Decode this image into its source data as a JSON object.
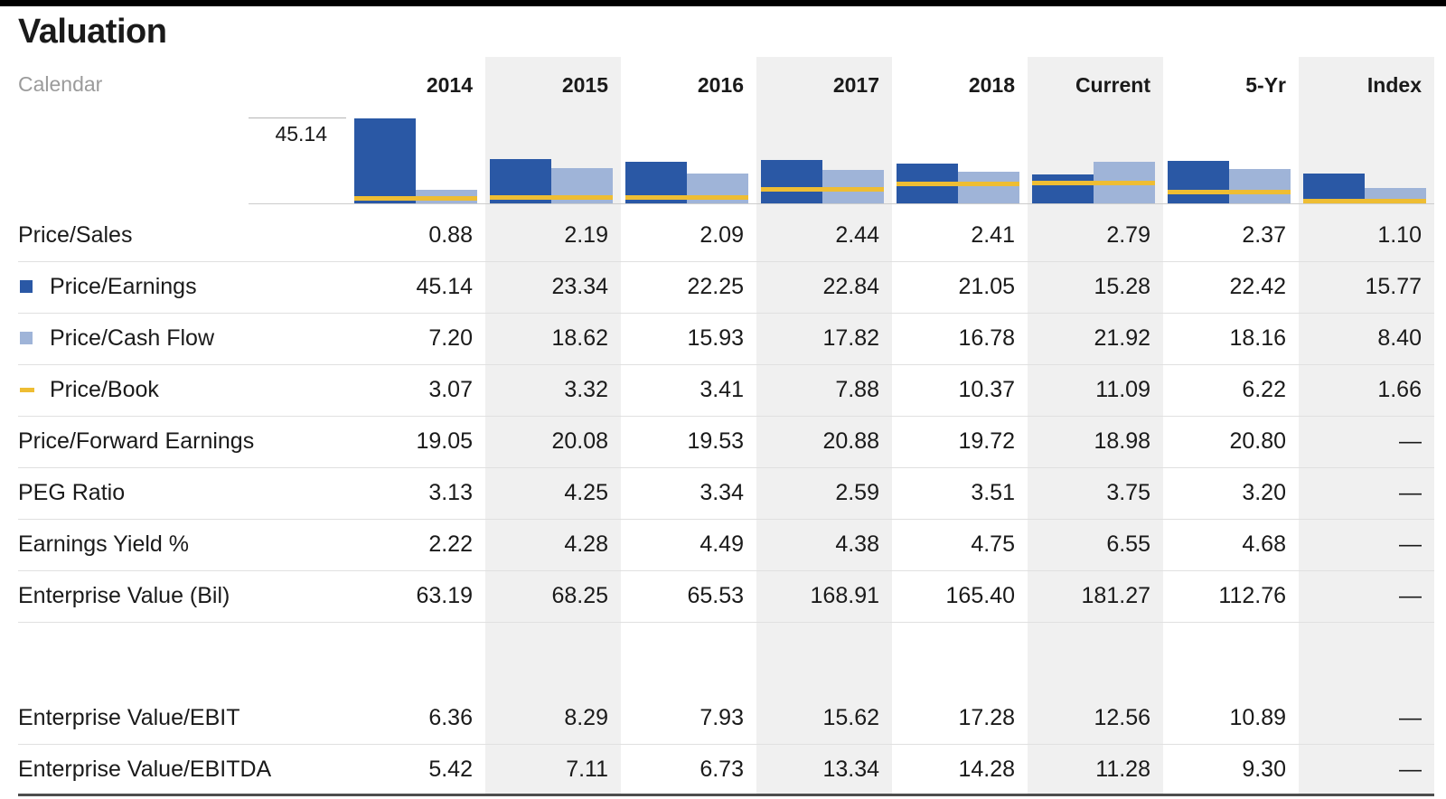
{
  "page": {
    "title": "Valuation"
  },
  "header": {
    "row_label": "Calendar",
    "columns": [
      "2014",
      "2015",
      "2016",
      "2017",
      "2018",
      "Current",
      "5-Yr",
      "Index"
    ]
  },
  "chart_data": {
    "type": "bar",
    "categories": [
      "2014",
      "2015",
      "2016",
      "2017",
      "2018",
      "Current",
      "5-Yr",
      "Index"
    ],
    "series": [
      {
        "name": "Price/Earnings",
        "type": "bar",
        "color": "#2a58a5",
        "values": [
          45.14,
          23.34,
          22.25,
          22.84,
          21.05,
          15.28,
          22.42,
          15.77
        ]
      },
      {
        "name": "Price/Cash Flow",
        "type": "bar",
        "color": "#9fb4d8",
        "values": [
          7.2,
          18.62,
          15.93,
          17.82,
          16.78,
          21.92,
          18.16,
          8.4
        ]
      },
      {
        "name": "Price/Book",
        "type": "line",
        "color": "#eebd33",
        "values": [
          3.07,
          3.32,
          3.41,
          7.88,
          10.37,
          11.09,
          6.22,
          1.66
        ]
      }
    ],
    "ylim": [
      0,
      45.14
    ],
    "annotation": {
      "text": "45.14",
      "value": 45.14
    },
    "grid": "baseline-only",
    "legend_position": "table-rows",
    "striped_columns": [
      "2015",
      "2017",
      "Current",
      "Index"
    ]
  },
  "table": {
    "missing_value": "—",
    "rows": [
      {
        "label": "Price/Sales",
        "legend": null,
        "values": [
          "0.88",
          "2.19",
          "2.09",
          "2.44",
          "2.41",
          "2.79",
          "2.37",
          "1.10"
        ]
      },
      {
        "label": "Price/Earnings",
        "legend": "pe",
        "values": [
          "45.14",
          "23.34",
          "22.25",
          "22.84",
          "21.05",
          "15.28",
          "22.42",
          "15.77"
        ]
      },
      {
        "label": "Price/Cash Flow",
        "legend": "pcf",
        "values": [
          "7.20",
          "18.62",
          "15.93",
          "17.82",
          "16.78",
          "21.92",
          "18.16",
          "8.40"
        ]
      },
      {
        "label": "Price/Book",
        "legend": "pb",
        "values": [
          "3.07",
          "3.32",
          "3.41",
          "7.88",
          "10.37",
          "11.09",
          "6.22",
          "1.66"
        ]
      },
      {
        "label": "Price/Forward Earnings",
        "legend": null,
        "values": [
          "19.05",
          "20.08",
          "19.53",
          "20.88",
          "19.72",
          "18.98",
          "20.80",
          "—"
        ]
      },
      {
        "label": "PEG Ratio",
        "legend": null,
        "values": [
          "3.13",
          "4.25",
          "3.34",
          "2.59",
          "3.51",
          "3.75",
          "3.20",
          "—"
        ]
      },
      {
        "label": "Earnings Yield %",
        "legend": null,
        "values": [
          "2.22",
          "4.28",
          "4.49",
          "4.38",
          "4.75",
          "6.55",
          "4.68",
          "—"
        ]
      },
      {
        "label": "Enterprise Value (Bil)",
        "legend": null,
        "values": [
          "63.19",
          "68.25",
          "65.53",
          "168.91",
          "165.40",
          "181.27",
          "112.76",
          "—"
        ],
        "section_end": true
      },
      {
        "label": "Enterprise Value/EBIT",
        "legend": null,
        "values": [
          "6.36",
          "8.29",
          "7.93",
          "15.62",
          "17.28",
          "12.56",
          "10.89",
          "—"
        ]
      },
      {
        "label": "Enterprise Value/EBITDA",
        "legend": null,
        "values": [
          "5.42",
          "7.11",
          "6.73",
          "13.34",
          "14.28",
          "11.28",
          "9.30",
          "—"
        ]
      }
    ]
  },
  "colors": {
    "top_border": "#000000",
    "stripe": "#f0f0f0",
    "separator": "#e0e0e0",
    "chart_baseline": "#cccccc",
    "annotation_line": "#b5b5b5",
    "bottom_border": "#4d4d4d",
    "text": "#1a1a1a",
    "muted_text": "#9b9b9b"
  }
}
